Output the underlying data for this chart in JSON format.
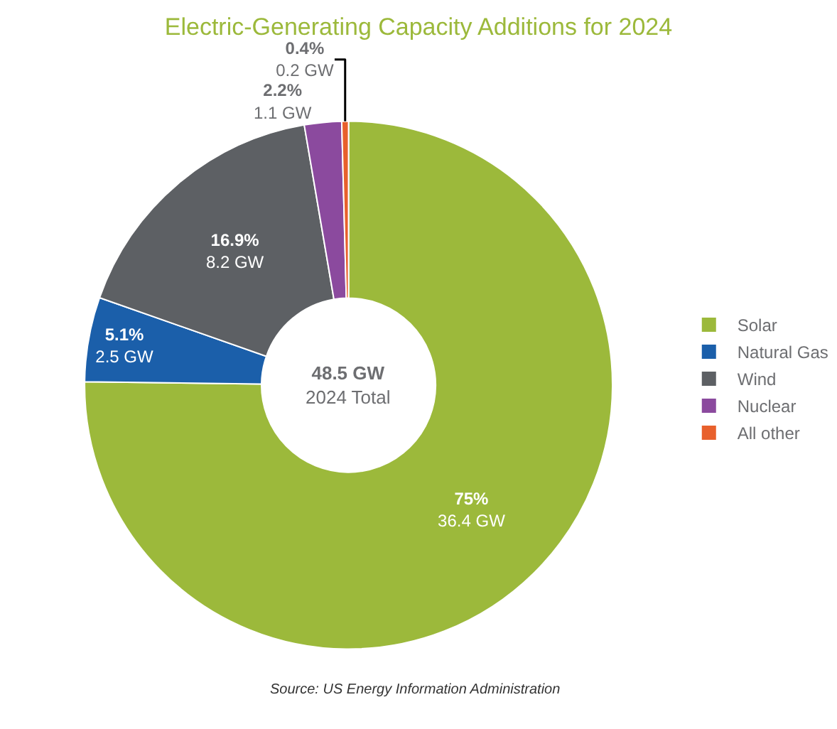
{
  "chart_data": {
    "type": "donut",
    "title": "Electric-Generating Capacity Additions for 2024",
    "categories": [
      "Solar",
      "Natural Gas",
      "Wind",
      "Nuclear",
      "All other"
    ],
    "values": [
      36.4,
      2.5,
      8.2,
      1.1,
      0.2
    ],
    "colors": [
      "#9cb93b",
      "#1b5faa",
      "#5d6064",
      "#8b4a9e",
      "#e8602c"
    ],
    "value_labels": [
      "75%\n36.4 GW",
      "5.1%\n2.5 GW",
      "16.9%\n8.2 GW",
      "2.2%\n1.1 GW",
      "0.4%\n0.2 GW"
    ],
    "annotations": [
      "48.5 GW\n2024 Total",
      "Source: US Energy Information Administration"
    ],
    "legend": "right"
  }
}
